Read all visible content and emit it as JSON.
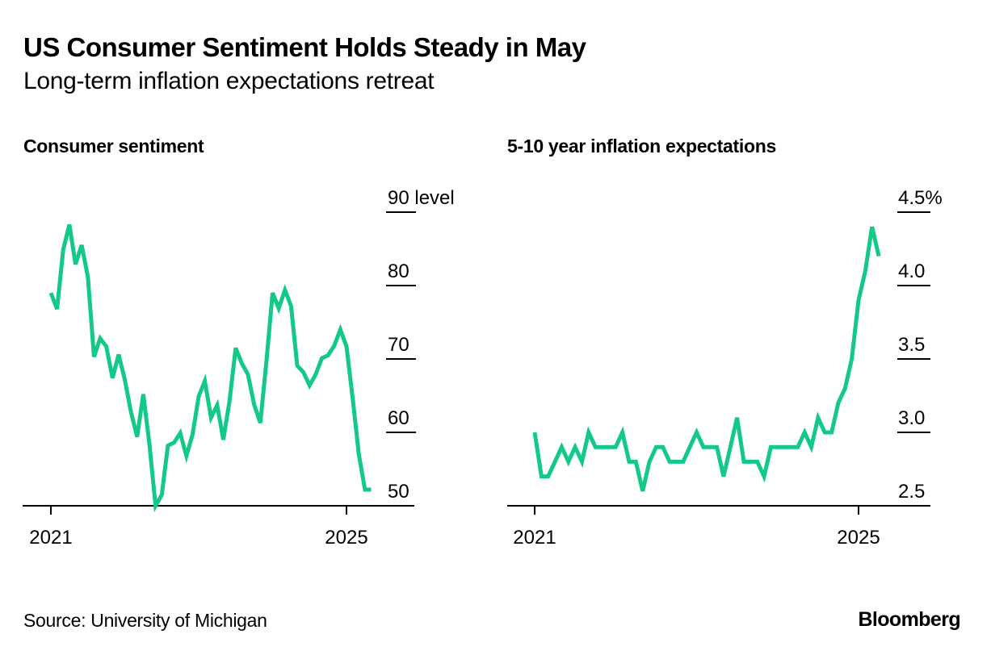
{
  "header": {
    "title": "US Consumer Sentiment Holds Steady in May",
    "subtitle": "Long-term inflation expectations retreat"
  },
  "footer": {
    "source": "Source: University of Michigan",
    "logo": "Bloomberg"
  },
  "colors": {
    "line": "#13c987",
    "axis": "#000000",
    "text": "#000000",
    "background": "#ffffff"
  },
  "chart_data": [
    {
      "type": "line",
      "title": "Consumer sentiment",
      "xlabel": "",
      "ylabel": "level",
      "x_tick_labels": [
        "2021",
        "2025"
      ],
      "y_tick_labels": [
        "90 level",
        "80",
        "70",
        "60",
        "50"
      ],
      "y_ticks": [
        90,
        80,
        70,
        60,
        50
      ],
      "ylim": [
        47.5,
        92.5
      ],
      "x_start": "2021-01",
      "frequency": "monthly",
      "grid": false,
      "series": [
        {
          "name": "Consumer sentiment",
          "values": [
            79.0,
            76.8,
            84.9,
            88.3,
            82.9,
            85.5,
            81.2,
            70.3,
            72.8,
            71.7,
            67.4,
            70.6,
            67.2,
            62.8,
            59.4,
            65.2,
            58.4,
            50.0,
            51.5,
            58.2,
            58.6,
            59.9,
            56.8,
            59.7,
            64.9,
            67.0,
            62.0,
            63.7,
            59.0,
            64.2,
            71.5,
            69.4,
            67.9,
            63.8,
            61.3,
            69.7,
            79.0,
            76.9,
            79.4,
            77.2,
            69.1,
            68.2,
            66.4,
            67.9,
            70.1,
            70.5,
            71.8,
            74.0,
            71.7,
            64.7,
            57.0,
            52.2,
            52.2
          ]
        }
      ]
    },
    {
      "type": "line",
      "title": "5-10 year inflation expectations",
      "xlabel": "",
      "ylabel": "%",
      "x_tick_labels": [
        "2021",
        "2025"
      ],
      "y_tick_labels": [
        "4.5%",
        "4.0",
        "3.5",
        "3.0",
        "2.5"
      ],
      "y_ticks": [
        4.5,
        4.0,
        3.5,
        3.0,
        2.5
      ],
      "ylim": [
        2.375,
        4.625
      ],
      "x_start": "2021-01",
      "frequency": "monthly",
      "grid": false,
      "series": [
        {
          "name": "5-10 year inflation expectations",
          "values": [
            3.0,
            2.7,
            2.7,
            2.8,
            2.9,
            2.8,
            2.9,
            2.8,
            3.0,
            2.9,
            2.9,
            2.9,
            2.9,
            3.0,
            2.8,
            2.8,
            2.6,
            2.8,
            2.9,
            2.9,
            2.8,
            2.8,
            2.8,
            2.9,
            3.0,
            2.9,
            2.9,
            2.9,
            2.7,
            2.9,
            3.1,
            2.8,
            2.8,
            2.8,
            2.7,
            2.9,
            2.9,
            2.9,
            2.9,
            2.9,
            3.0,
            2.9,
            3.1,
            3.0,
            3.0,
            3.2,
            3.3,
            3.5,
            3.9,
            4.1,
            4.4,
            4.2
          ]
        }
      ]
    }
  ]
}
